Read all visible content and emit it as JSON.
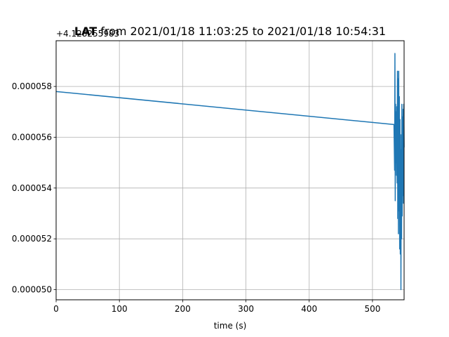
{
  "chart_data": {
    "type": "line",
    "title": {
      "bold_part": "LAT",
      "rest": " from 2021/01/18 11:03:25 to 2021/01/18 10:54:31"
    },
    "xlabel": "time (s)",
    "ylabel": "",
    "y_offset_text": "+4.128255983",
    "xlim": [
      0,
      550
    ],
    "ylim": [
      4.96e-05,
      5.98e-05
    ],
    "x_ticks": [
      0,
      100,
      200,
      300,
      400,
      500
    ],
    "y_ticks": [
      5e-05,
      5.2e-05,
      5.4e-05,
      5.6e-05,
      5.8e-05
    ],
    "y_tick_labels": [
      "0.000050",
      "0.000052",
      "0.000054",
      "0.000056",
      "0.000058"
    ],
    "grid": true,
    "line_color": "#1f77b4",
    "series": [
      {
        "x": [
          0,
          534,
          535,
          535.5,
          536,
          536.5,
          537,
          537.5,
          538,
          538.5,
          539,
          539.5,
          540,
          540.5,
          541,
          541.5,
          542,
          542.5,
          543,
          543.5,
          544,
          544.5,
          545,
          545.5,
          546,
          546.5,
          547,
          547.5,
          548,
          548.5,
          549,
          549.5,
          550
        ],
        "y": [
          5.78e-05,
          5.65e-05,
          5.47e-05,
          5.93e-05,
          5.35e-05,
          5.73e-05,
          5.5e-05,
          5.7e-05,
          5.45e-05,
          5.72e-05,
          5.42e-05,
          5.86e-05,
          5.28e-05,
          5.83e-05,
          5.22e-05,
          5.86e-05,
          5.31e-05,
          5.76e-05,
          5.16e-05,
          5.67e-05,
          5.14e-05,
          5.61e-05,
          5e-05,
          5.55e-05,
          5.2e-05,
          5.73e-05,
          5.29e-05,
          5.68e-05,
          5.37e-05,
          5.71e-05,
          5.34e-05,
          5.73e-05,
          5.56e-05
        ]
      }
    ]
  }
}
